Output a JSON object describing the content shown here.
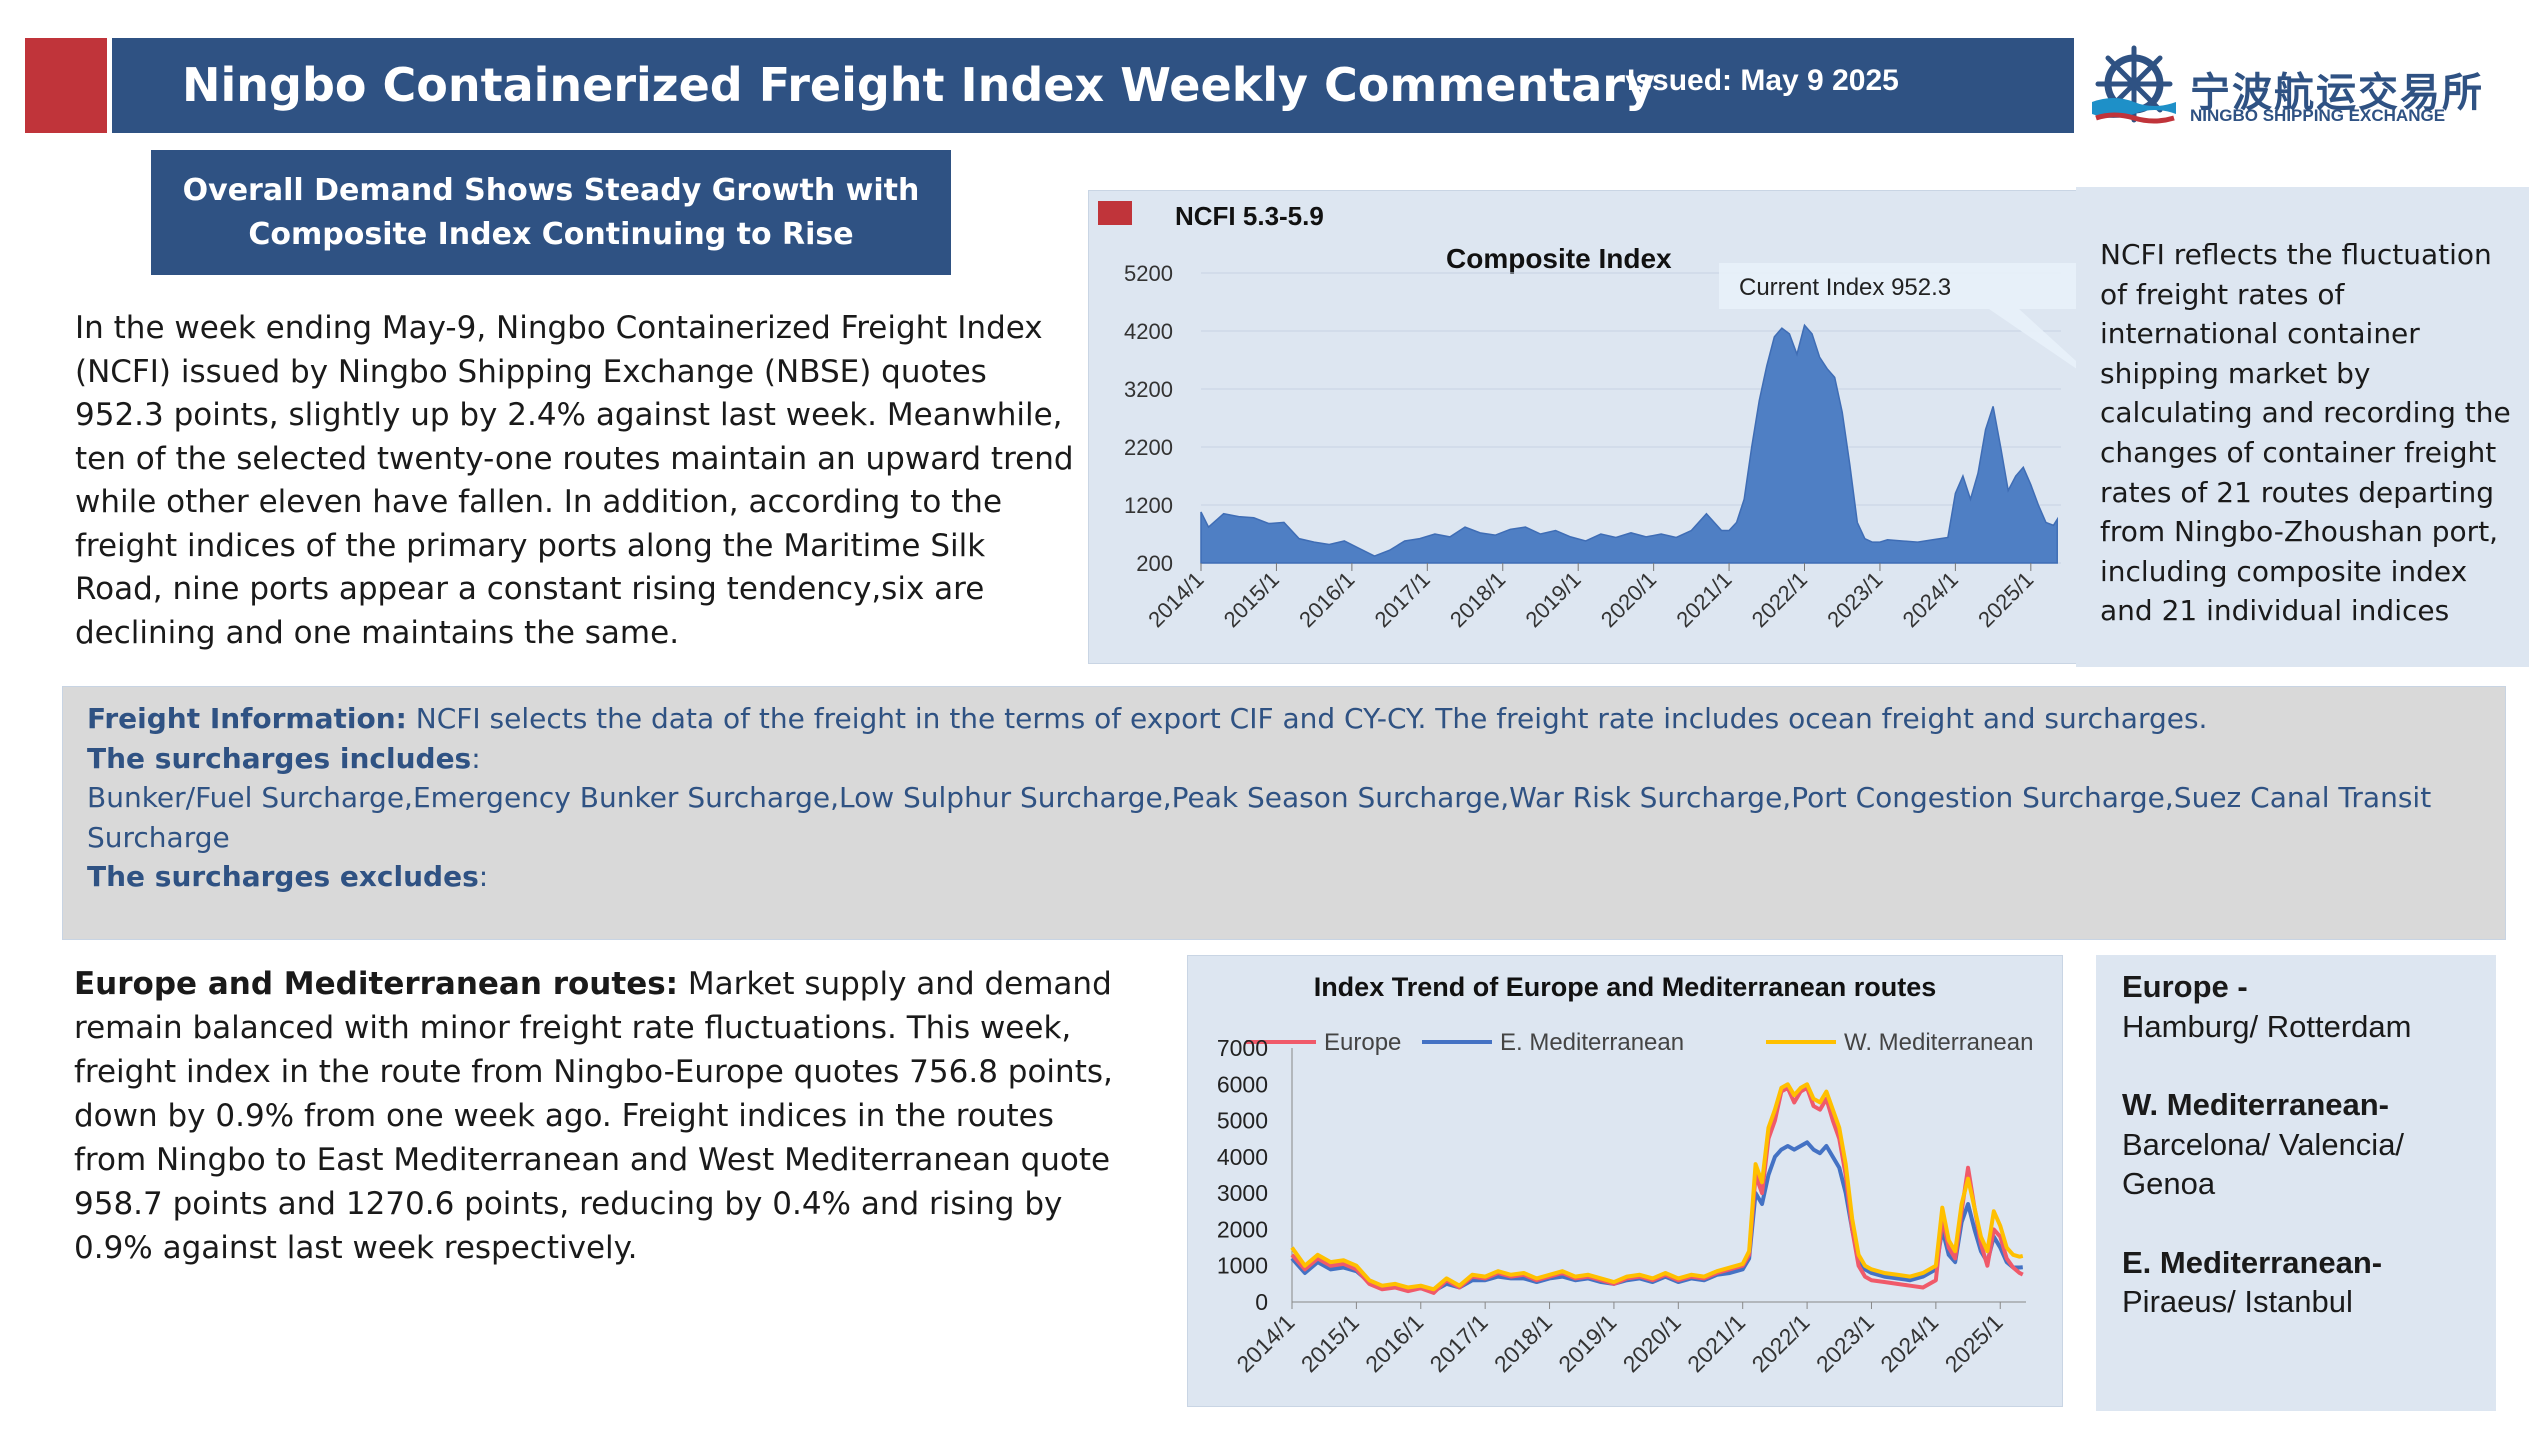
{
  "header": {
    "title": "Ningbo Containerized Freight Index Weekly Commentary",
    "issued": "Issued: May 9 2025",
    "logo_cn": "宁波航运交易所",
    "logo_en": "NINGBO SHIPPING EXCHANGE"
  },
  "headline": {
    "line1": "Overall Demand Shows Steady Growth with",
    "line2": "Composite Index Continuing to Rise"
  },
  "intro_paragraph": "In the week ending May-9, Ningbo Containerized Freight Index (NCFI) issued by Ningbo Shipping Exchange (NBSE) quotes 952.3 points, slightly up by 2.4% against last week. Meanwhile, ten of the selected twenty-one routes maintain an upward trend while other eleven have fallen. In addition, according to the freight indices of the primary ports along the Maritime Silk Road, nine ports appear a constant rising tendency,six are declining and one maintains the same.",
  "ncfi_description": "NCFI reflects the fluctuation of freight rates of international container shipping market by calculating and recording the changes of container freight rates of 21 routes departing from Ningbo-Zhoushan port, including composite index and 21 individual indices",
  "freight_info": {
    "label": "Freight Information:",
    "text": " NCFI selects the data of the freight in the terms of export CIF and CY-CY. The freight rate includes ocean freight and surcharges.",
    "includes_label": "The surcharges includes",
    "includes_list": "Bunker/Fuel Surcharge,Emergency Bunker Surcharge,Low Sulphur Surcharge,Peak Season Surcharge,War Risk Surcharge,Port Congestion Surcharge,Suez Canal Transit Surcharge",
    "excludes_label": "The surcharges excludes",
    "colon": ":"
  },
  "europe_section": {
    "label": "Europe and Mediterranean routes:",
    "text": "  Market supply and demand remain balanced with minor freight rate fluctuations. This week, freight index in the route from Ningbo-Europe quotes 756.8 points, down by 0.9% from one week ago. Freight indices in the routes from Ningbo to East Mediterranean and West Mediterranean quote 958.7 points and 1270.6 points, reducing by 0.4% and rising by 0.9% against last week respectively."
  },
  "route_legend": {
    "europe_title": "Europe -",
    "europe_ports": "Hamburg/ Rotterdam",
    "wmed_title": "W. Mediterranean-",
    "wmed_ports": "Barcelona/ Valencia/ Genoa",
    "emed_title": "E. Mediterranean-",
    "emed_ports": "Piraeus/ Istanbul"
  },
  "colors": {
    "navy": "#2f5283",
    "red": "#c0343a",
    "area_fill": "#4f7fc4",
    "europe": "#f05a6a",
    "emed": "#4472c4",
    "wmed": "#ffc000"
  },
  "chart_data": [
    {
      "type": "area",
      "legend": "NCFI 5.3-5.9",
      "title": "Composite Index",
      "annotation": "Current Index 952.3",
      "x_ticks": [
        "2014/1",
        "2015/1",
        "2016/1",
        "2017/1",
        "2018/1",
        "2019/1",
        "2020/1",
        "2021/1",
        "2022/1",
        "2023/1",
        "2024/1",
        "2025/1"
      ],
      "y_ticks": [
        200,
        1200,
        2200,
        3200,
        4200,
        5200
      ],
      "ylim": [
        200,
        5200
      ],
      "x_range": [
        2014.0,
        2025.4
      ],
      "series": [
        {
          "x": [
            2014.0,
            2014.1,
            2014.3,
            2014.5,
            2014.7,
            2014.9,
            2015.1,
            2015.3,
            2015.5,
            2015.7,
            2015.9,
            2016.1,
            2016.3,
            2016.5,
            2016.7,
            2016.9,
            2017.1,
            2017.3,
            2017.5,
            2017.7,
            2017.9,
            2018.1,
            2018.3,
            2018.5,
            2018.7,
            2018.9,
            2019.1,
            2019.3,
            2019.5,
            2019.7,
            2019.9,
            2020.1,
            2020.3,
            2020.5,
            2020.7,
            2020.9,
            2021.0,
            2021.1,
            2021.2,
            2021.3,
            2021.4,
            2021.5,
            2021.6,
            2021.7,
            2021.8,
            2021.9,
            2022.0,
            2022.1,
            2022.2,
            2022.3,
            2022.4,
            2022.5,
            2022.6,
            2022.7,
            2022.8,
            2022.9,
            2023.0,
            2023.1,
            2023.3,
            2023.5,
            2023.7,
            2023.9,
            2024.0,
            2024.1,
            2024.2,
            2024.3,
            2024.4,
            2024.5,
            2024.6,
            2024.7,
            2024.8,
            2024.9,
            2025.0,
            2025.1,
            2025.2,
            2025.3,
            2025.35
          ],
          "values": [
            1080,
            820,
            1050,
            1000,
            980,
            880,
            900,
            620,
            560,
            520,
            580,
            450,
            320,
            420,
            580,
            620,
            700,
            650,
            820,
            720,
            680,
            780,
            820,
            700,
            760,
            650,
            580,
            700,
            640,
            720,
            650,
            700,
            640,
            760,
            1050,
            760,
            760,
            900,
            1300,
            2200,
            3000,
            3600,
            4100,
            4250,
            4150,
            3800,
            4300,
            4150,
            3750,
            3550,
            3400,
            2800,
            1900,
            900,
            620,
            560,
            560,
            600,
            580,
            560,
            600,
            640,
            1400,
            1700,
            1300,
            1750,
            2500,
            2900,
            2200,
            1450,
            1700,
            1850,
            1550,
            1200,
            900,
            850,
            952.3
          ]
        }
      ]
    },
    {
      "type": "line",
      "title": "Index Trend of Europe and Mediterranean routes",
      "x_ticks": [
        "2014/1",
        "2015/1",
        "2016/1",
        "2017/1",
        "2018/1",
        "2019/1",
        "2020/1",
        "2021/1",
        "2022/1",
        "2023/1",
        "2024/1",
        "2025/1"
      ],
      "y_ticks": [
        0,
        1000,
        2000,
        3000,
        4000,
        5000,
        6000,
        7000
      ],
      "ylim": [
        0,
        7000
      ],
      "x_range": [
        2014.0,
        2025.4
      ],
      "x": [
        2014.0,
        2014.2,
        2014.4,
        2014.6,
        2014.8,
        2015.0,
        2015.2,
        2015.4,
        2015.6,
        2015.8,
        2016.0,
        2016.2,
        2016.4,
        2016.6,
        2016.8,
        2017.0,
        2017.2,
        2017.4,
        2017.6,
        2017.8,
        2018.0,
        2018.2,
        2018.4,
        2018.6,
        2018.8,
        2019.0,
        2019.2,
        2019.4,
        2019.6,
        2019.8,
        2020.0,
        2020.2,
        2020.4,
        2020.6,
        2020.8,
        2021.0,
        2021.1,
        2021.2,
        2021.3,
        2021.4,
        2021.5,
        2021.6,
        2021.7,
        2021.8,
        2021.9,
        2022.0,
        2022.1,
        2022.2,
        2022.3,
        2022.4,
        2022.5,
        2022.6,
        2022.7,
        2022.8,
        2022.9,
        2023.0,
        2023.2,
        2023.4,
        2023.6,
        2023.8,
        2024.0,
        2024.1,
        2024.2,
        2024.3,
        2024.4,
        2024.5,
        2024.6,
        2024.7,
        2024.8,
        2024.9,
        2025.0,
        2025.1,
        2025.2,
        2025.3,
        2025.35
      ],
      "series": [
        {
          "name": "Europe",
          "values": [
            1300,
            900,
            1200,
            1000,
            1050,
            900,
            500,
            350,
            400,
            300,
            380,
            250,
            600,
            400,
            700,
            650,
            800,
            700,
            750,
            600,
            700,
            800,
            650,
            700,
            600,
            500,
            650,
            700,
            600,
            750,
            600,
            700,
            650,
            800,
            900,
            1000,
            1300,
            3500,
            3000,
            4500,
            5000,
            5800,
            5900,
            5500,
            5800,
            5900,
            5400,
            5300,
            5600,
            5000,
            4500,
            3500,
            2000,
            1000,
            700,
            600,
            550,
            500,
            450,
            400,
            600,
            2300,
            1500,
            1200,
            2500,
            3700,
            2600,
            1600,
            1000,
            2000,
            1800,
            1200,
            950,
            800,
            756.8
          ]
        },
        {
          "name": "E. Mediterranean",
          "values": [
            1200,
            800,
            1100,
            900,
            950,
            850,
            550,
            400,
            450,
            350,
            400,
            300,
            500,
            400,
            600,
            600,
            700,
            650,
            650,
            550,
            650,
            700,
            600,
            650,
            550,
            500,
            600,
            650,
            550,
            700,
            550,
            650,
            600,
            750,
            800,
            900,
            1200,
            3000,
            2700,
            3500,
            4000,
            4200,
            4300,
            4200,
            4300,
            4400,
            4200,
            4100,
            4300,
            4000,
            3700,
            3000,
            2000,
            1200,
            900,
            800,
            700,
            650,
            600,
            700,
            900,
            2000,
            1300,
            1100,
            2200,
            2700,
            2000,
            1400,
            1100,
            1800,
            1500,
            1100,
            950,
            950,
            958.7
          ]
        },
        {
          "name": "W. Mediterranean",
          "values": [
            1500,
            1000,
            1300,
            1100,
            1150,
            1000,
            600,
            450,
            500,
            400,
            450,
            350,
            650,
            450,
            750,
            700,
            850,
            750,
            800,
            650,
            750,
            850,
            700,
            750,
            650,
            550,
            700,
            750,
            650,
            800,
            650,
            750,
            700,
            850,
            950,
            1050,
            1400,
            3800,
            3300,
            4800,
            5300,
            5900,
            6000,
            5700,
            5900,
            6000,
            5600,
            5500,
            5800,
            5300,
            4800,
            3800,
            2300,
            1300,
            1000,
            900,
            800,
            750,
            700,
            800,
            1000,
            2600,
            1700,
            1400,
            2700,
            3400,
            2600,
            1800,
            1400,
            2500,
            2100,
            1500,
            1300,
            1250,
            1270.6
          ]
        }
      ]
    }
  ]
}
